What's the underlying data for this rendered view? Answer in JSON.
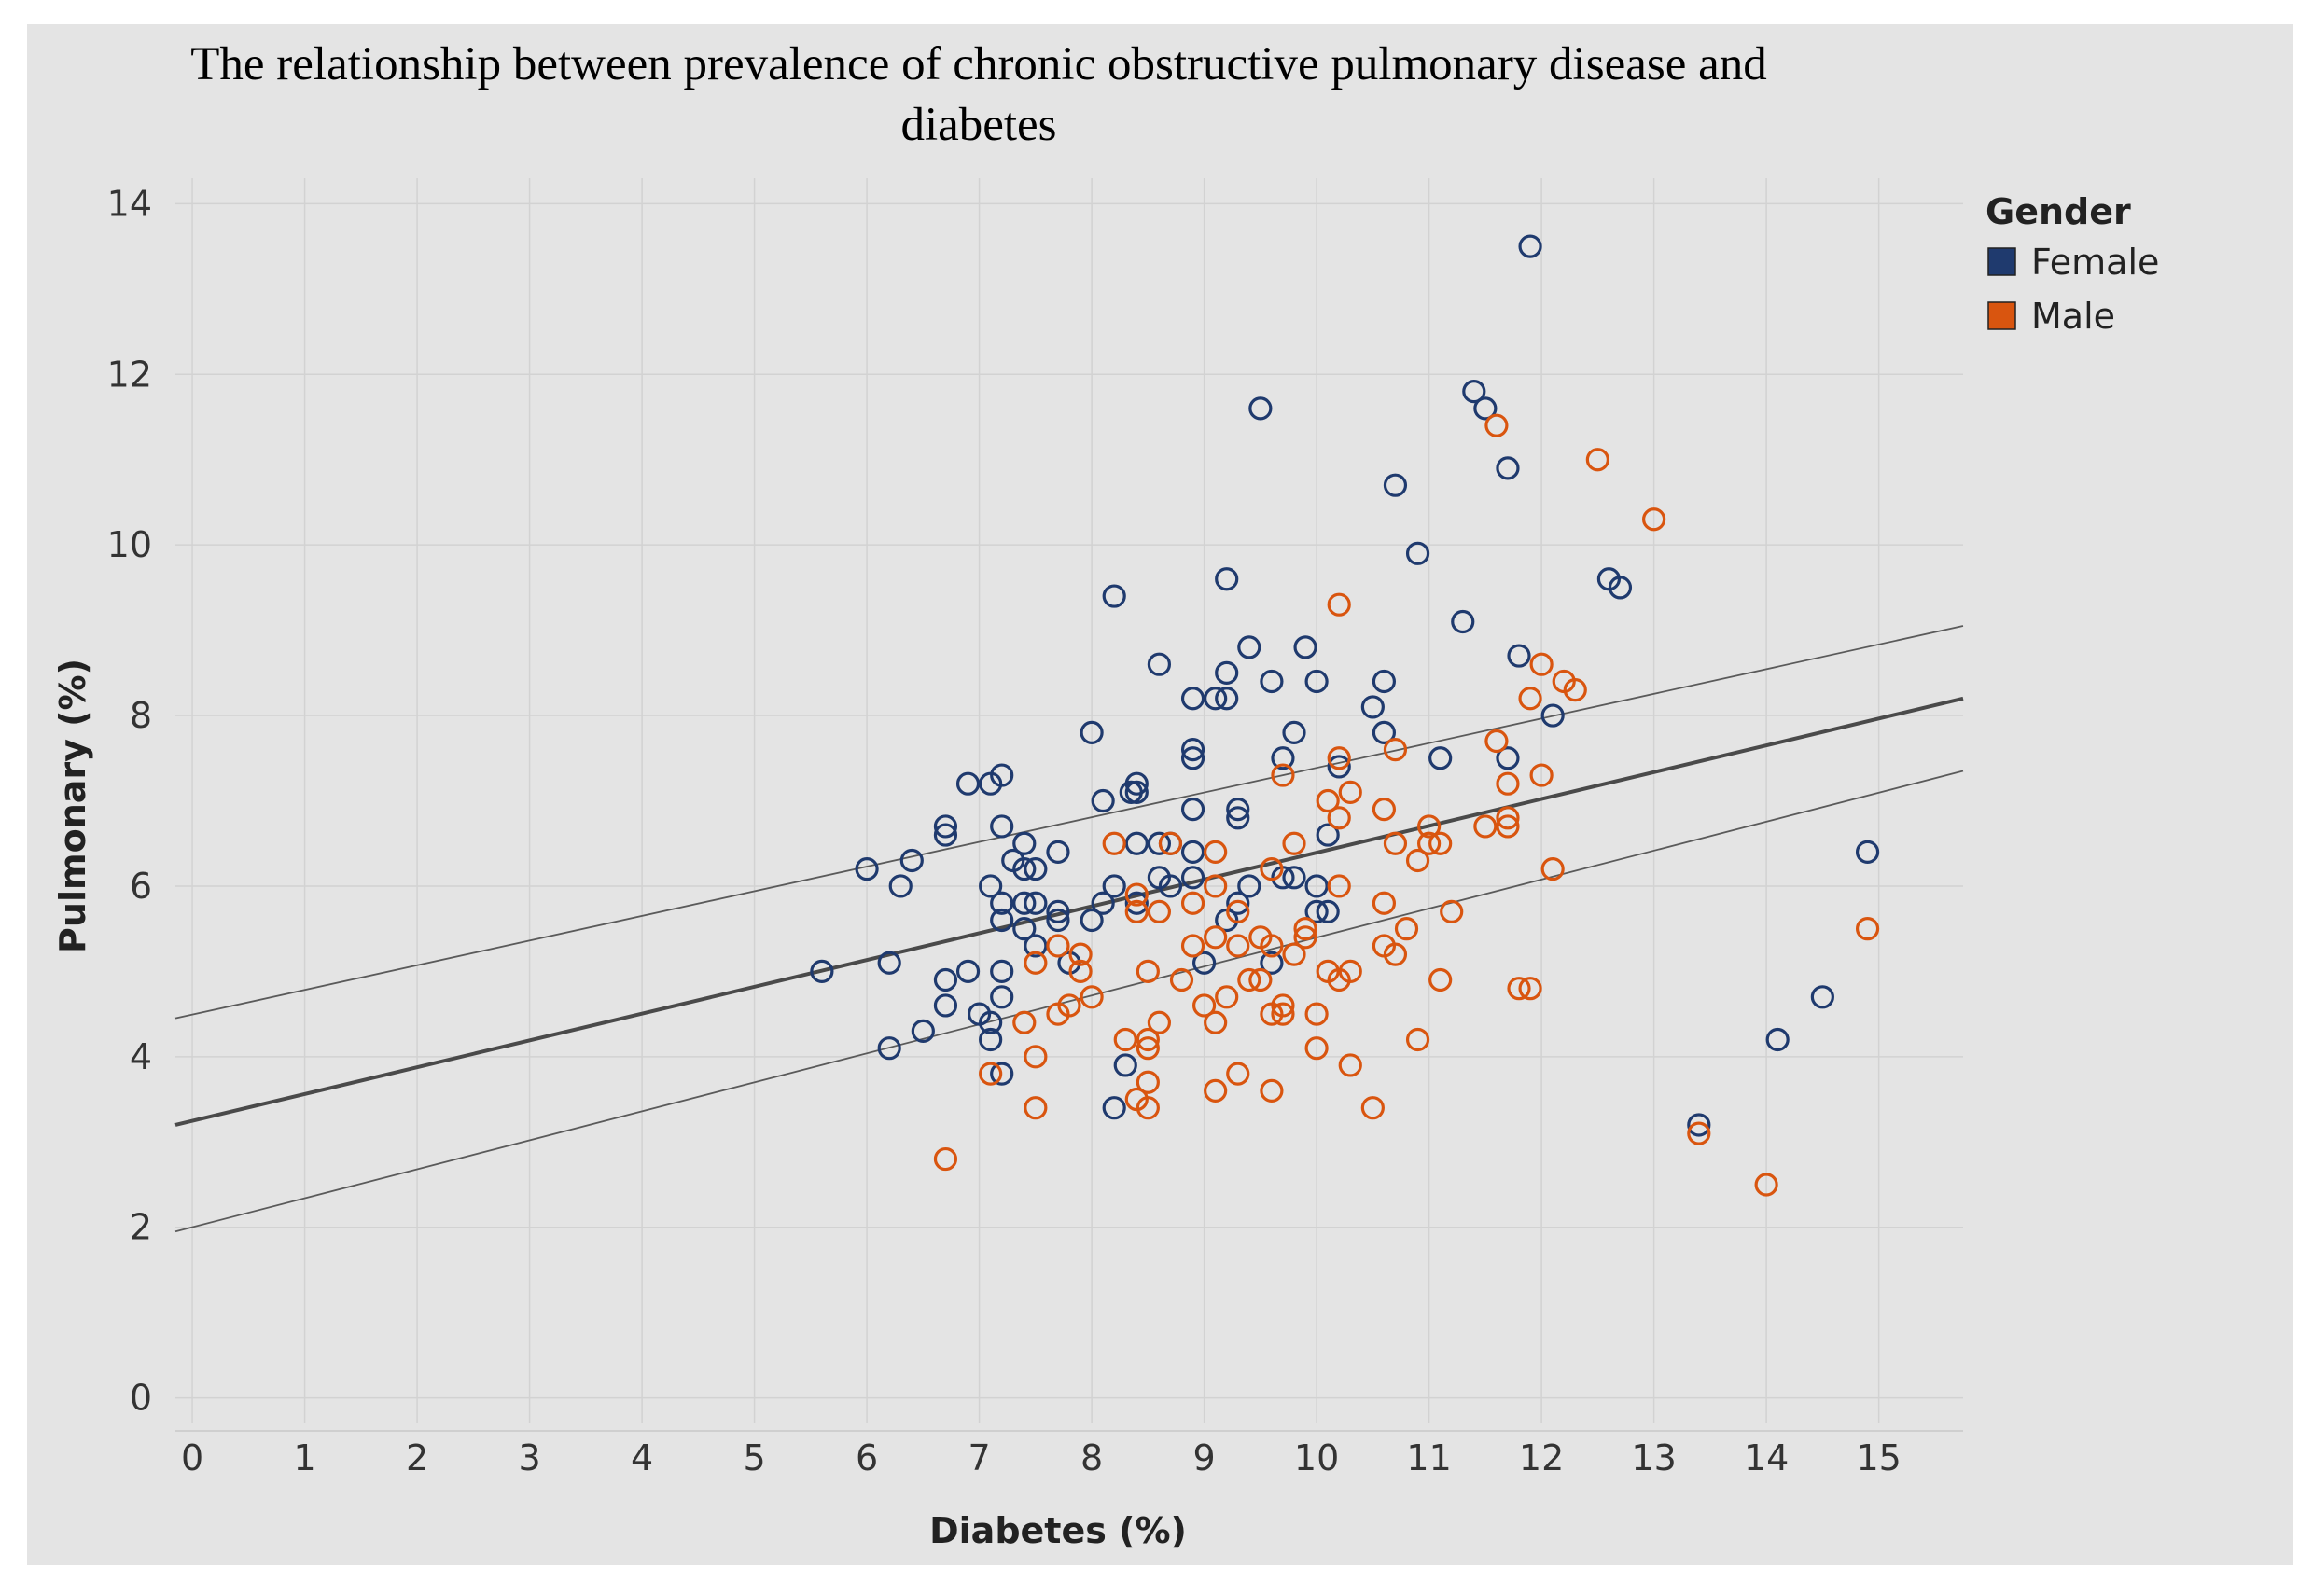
{
  "chart_data": {
    "type": "scatter",
    "title": "The relationship between prevalence of chronic obstructive pulmonary disease  and diabetes",
    "title_lines": [
      "The relationship between prevalence of chronic obstructive pulmonary disease  and",
      "diabetes"
    ],
    "xlabel": "Diabetes (%)",
    "ylabel": "Pulmonary (%)",
    "xlim": [
      -0.15,
      15.75
    ],
    "ylim": [
      -0.3,
      14.3
    ],
    "x_ticks": [
      0,
      1,
      2,
      3,
      4,
      5,
      6,
      7,
      8,
      9,
      10,
      11,
      12,
      13,
      14,
      15
    ],
    "y_ticks": [
      0,
      2,
      4,
      6,
      8,
      10,
      12,
      14
    ],
    "grid": true,
    "legend": {
      "title": "Gender",
      "position": "top-right",
      "entries": [
        {
          "name": "Female",
          "color": "#1f3a6e"
        },
        {
          "name": "Male",
          "color": "#d9550f"
        }
      ]
    },
    "trend_lines": [
      {
        "name": "trend",
        "x": [
          -0.15,
          15.75
        ],
        "y": [
          3.2,
          8.2
        ]
      },
      {
        "name": "upper-confidence",
        "x": [
          -0.15,
          15.75
        ],
        "y": [
          4.45,
          9.05
        ]
      },
      {
        "name": "lower-confidence",
        "x": [
          -0.15,
          15.75
        ],
        "y": [
          1.95,
          7.35
        ]
      }
    ],
    "series": [
      {
        "name": "Female",
        "color": "#1f3a6e",
        "points": [
          [
            11.9,
            13.5
          ],
          [
            11.4,
            11.8
          ],
          [
            11.5,
            11.6
          ],
          [
            9.5,
            11.6
          ],
          [
            11.7,
            10.9
          ],
          [
            10.7,
            10.7
          ],
          [
            10.9,
            9.9
          ],
          [
            9.2,
            9.6
          ],
          [
            8.2,
            9.4
          ],
          [
            12.6,
            9.6
          ],
          [
            12.7,
            9.5
          ],
          [
            11.3,
            9.1
          ],
          [
            9.4,
            8.8
          ],
          [
            9.9,
            8.8
          ],
          [
            11.8,
            8.7
          ],
          [
            8.6,
            8.6
          ],
          [
            9.2,
            8.5
          ],
          [
            9.6,
            8.4
          ],
          [
            10.0,
            8.4
          ],
          [
            10.6,
            8.4
          ],
          [
            8.9,
            8.2
          ],
          [
            9.1,
            8.2
          ],
          [
            9.2,
            8.2
          ],
          [
            10.5,
            8.1
          ],
          [
            12.1,
            8.0
          ],
          [
            8.0,
            7.8
          ],
          [
            9.8,
            7.8
          ],
          [
            10.6,
            7.8
          ],
          [
            8.9,
            7.6
          ],
          [
            8.9,
            7.5
          ],
          [
            9.7,
            7.5
          ],
          [
            11.1,
            7.5
          ],
          [
            11.7,
            7.5
          ],
          [
            10.2,
            7.4
          ],
          [
            7.2,
            7.3
          ],
          [
            6.9,
            7.2
          ],
          [
            7.1,
            7.2
          ],
          [
            8.4,
            7.2
          ],
          [
            8.35,
            7.1
          ],
          [
            8.4,
            7.1
          ],
          [
            8.1,
            7.0
          ],
          [
            8.9,
            6.9
          ],
          [
            9.3,
            6.9
          ],
          [
            9.3,
            6.8
          ],
          [
            6.7,
            6.7
          ],
          [
            6.7,
            6.6
          ],
          [
            7.2,
            6.7
          ],
          [
            10.1,
            6.6
          ],
          [
            7.4,
            6.5
          ],
          [
            8.4,
            6.5
          ],
          [
            8.6,
            6.5
          ],
          [
            8.7,
            6.5
          ],
          [
            7.3,
            6.3
          ],
          [
            6.4,
            6.3
          ],
          [
            7.7,
            6.4
          ],
          [
            8.9,
            6.4
          ],
          [
            6.0,
            6.2
          ],
          [
            7.4,
            6.2
          ],
          [
            7.5,
            6.2
          ],
          [
            9.7,
            6.1
          ],
          [
            9.8,
            6.1
          ],
          [
            8.6,
            6.1
          ],
          [
            8.9,
            6.1
          ],
          [
            6.3,
            6.0
          ],
          [
            7.1,
            6.0
          ],
          [
            8.2,
            6.0
          ],
          [
            8.7,
            6.0
          ],
          [
            9.4,
            6.0
          ],
          [
            10.0,
            6.0
          ],
          [
            7.2,
            5.8
          ],
          [
            7.4,
            5.8
          ],
          [
            7.5,
            5.8
          ],
          [
            8.1,
            5.8
          ],
          [
            8.4,
            5.8
          ],
          [
            9.3,
            5.8
          ],
          [
            10.0,
            5.7
          ],
          [
            10.1,
            5.7
          ],
          [
            7.7,
            5.7
          ],
          [
            7.2,
            5.6
          ],
          [
            7.7,
            5.6
          ],
          [
            8.0,
            5.6
          ],
          [
            9.2,
            5.6
          ],
          [
            7.4,
            5.5
          ],
          [
            7.5,
            5.3
          ],
          [
            5.6,
            5.0
          ],
          [
            6.2,
            5.1
          ],
          [
            7.8,
            5.1
          ],
          [
            9.0,
            5.1
          ],
          [
            9.6,
            5.1
          ],
          [
            6.9,
            5.0
          ],
          [
            7.2,
            5.0
          ],
          [
            6.7,
            4.9
          ],
          [
            7.2,
            4.7
          ],
          [
            6.7,
            4.6
          ],
          [
            7.0,
            4.5
          ],
          [
            7.1,
            4.4
          ],
          [
            6.5,
            4.3
          ],
          [
            7.1,
            4.2
          ],
          [
            6.2,
            4.1
          ],
          [
            8.3,
            3.9
          ],
          [
            7.2,
            3.8
          ],
          [
            8.2,
            3.4
          ],
          [
            14.9,
            6.4
          ],
          [
            14.5,
            4.7
          ],
          [
            14.1,
            4.2
          ],
          [
            13.4,
            3.2
          ]
        ]
      },
      {
        "name": "Male",
        "color": "#d9550f",
        "points": [
          [
            11.6,
            11.4
          ],
          [
            12.5,
            11.0
          ],
          [
            13.0,
            10.3
          ],
          [
            10.2,
            9.3
          ],
          [
            12.0,
            8.6
          ],
          [
            12.2,
            8.4
          ],
          [
            12.3,
            8.3
          ],
          [
            11.9,
            8.2
          ],
          [
            11.6,
            7.7
          ],
          [
            10.7,
            7.6
          ],
          [
            10.2,
            7.5
          ],
          [
            9.7,
            7.3
          ],
          [
            12.0,
            7.3
          ],
          [
            11.7,
            7.2
          ],
          [
            10.3,
            7.1
          ],
          [
            10.1,
            7.0
          ],
          [
            10.6,
            6.9
          ],
          [
            10.2,
            6.8
          ],
          [
            11.7,
            6.8
          ],
          [
            11.0,
            6.7
          ],
          [
            11.5,
            6.7
          ],
          [
            11.7,
            6.7
          ],
          [
            8.2,
            6.5
          ],
          [
            8.7,
            6.5
          ],
          [
            9.8,
            6.5
          ],
          [
            10.7,
            6.5
          ],
          [
            11.0,
            6.5
          ],
          [
            11.1,
            6.5
          ],
          [
            9.1,
            6.4
          ],
          [
            10.9,
            6.3
          ],
          [
            9.6,
            6.2
          ],
          [
            12.1,
            6.2
          ],
          [
            9.1,
            6.0
          ],
          [
            10.2,
            6.0
          ],
          [
            8.4,
            5.9
          ],
          [
            8.9,
            5.8
          ],
          [
            9.3,
            5.7
          ],
          [
            10.6,
            5.8
          ],
          [
            8.4,
            5.7
          ],
          [
            8.6,
            5.7
          ],
          [
            11.2,
            5.7
          ],
          [
            9.9,
            5.5
          ],
          [
            10.8,
            5.5
          ],
          [
            9.5,
            5.4
          ],
          [
            9.1,
            5.4
          ],
          [
            9.9,
            5.4
          ],
          [
            10.6,
            5.3
          ],
          [
            7.7,
            5.3
          ],
          [
            8.9,
            5.3
          ],
          [
            9.3,
            5.3
          ],
          [
            9.6,
            5.3
          ],
          [
            10.7,
            5.2
          ],
          [
            7.9,
            5.2
          ],
          [
            9.8,
            5.2
          ],
          [
            7.5,
            5.1
          ],
          [
            8.5,
            5.0
          ],
          [
            10.1,
            5.0
          ],
          [
            10.3,
            5.0
          ],
          [
            7.9,
            5.0
          ],
          [
            8.8,
            4.9
          ],
          [
            9.4,
            4.9
          ],
          [
            9.5,
            4.9
          ],
          [
            10.2,
            4.9
          ],
          [
            11.1,
            4.9
          ],
          [
            11.8,
            4.8
          ],
          [
            11.9,
            4.8
          ],
          [
            7.8,
            4.6
          ],
          [
            9.0,
            4.6
          ],
          [
            9.7,
            4.6
          ],
          [
            7.7,
            4.5
          ],
          [
            9.6,
            4.5
          ],
          [
            9.7,
            4.5
          ],
          [
            10.0,
            4.5
          ],
          [
            7.4,
            4.4
          ],
          [
            8.6,
            4.4
          ],
          [
            9.1,
            4.4
          ],
          [
            8.0,
            4.7
          ],
          [
            9.2,
            4.7
          ],
          [
            8.3,
            4.2
          ],
          [
            8.5,
            4.2
          ],
          [
            10.9,
            4.2
          ],
          [
            8.5,
            4.1
          ],
          [
            10.0,
            4.1
          ],
          [
            7.5,
            4.0
          ],
          [
            10.3,
            3.9
          ],
          [
            7.1,
            3.8
          ],
          [
            9.3,
            3.8
          ],
          [
            8.5,
            3.7
          ],
          [
            9.1,
            3.6
          ],
          [
            9.6,
            3.6
          ],
          [
            8.4,
            3.5
          ],
          [
            7.5,
            3.4
          ],
          [
            8.5,
            3.4
          ],
          [
            10.5,
            3.4
          ],
          [
            6.7,
            2.8
          ],
          [
            14.9,
            5.5
          ],
          [
            13.4,
            3.1
          ],
          [
            14.0,
            2.5
          ]
        ]
      }
    ]
  }
}
